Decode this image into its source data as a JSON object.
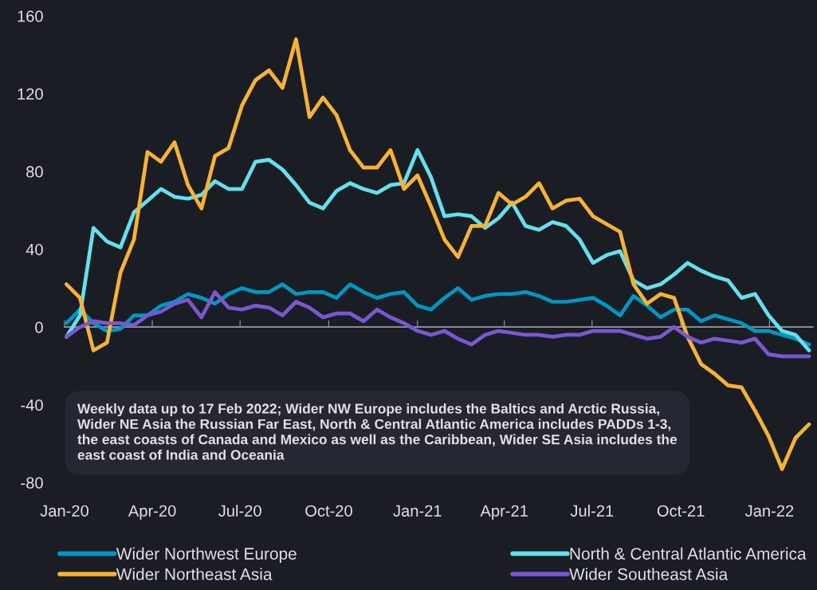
{
  "chart_data": {
    "type": "line",
    "x": [
      "2020-01-03",
      "2020-01-17",
      "2020-01-31",
      "2020-02-14",
      "2020-02-28",
      "2020-03-13",
      "2020-03-27",
      "2020-04-10",
      "2020-04-24",
      "2020-05-08",
      "2020-05-22",
      "2020-06-05",
      "2020-06-19",
      "2020-07-03",
      "2020-07-17",
      "2020-07-31",
      "2020-08-14",
      "2020-08-28",
      "2020-09-11",
      "2020-09-25",
      "2020-10-09",
      "2020-10-23",
      "2020-11-06",
      "2020-11-20",
      "2020-12-04",
      "2020-12-18",
      "2021-01-01",
      "2021-01-15",
      "2021-01-29",
      "2021-02-12",
      "2021-02-26",
      "2021-03-12",
      "2021-03-26",
      "2021-04-09",
      "2021-04-23",
      "2021-05-07",
      "2021-05-21",
      "2021-06-04",
      "2021-06-18",
      "2021-07-02",
      "2021-07-16",
      "2021-07-30",
      "2021-08-13",
      "2021-08-27",
      "2021-09-10",
      "2021-09-24",
      "2021-10-08",
      "2021-10-22",
      "2021-11-05",
      "2021-11-19",
      "2021-12-03",
      "2021-12-17",
      "2021-12-31",
      "2022-01-14",
      "2022-01-28",
      "2022-02-11"
    ],
    "series": [
      {
        "name": "Wider Northwest Europe",
        "color": "#0097c1",
        "values": [
          2,
          9,
          2,
          -2,
          -1,
          6,
          6,
          11,
          13,
          17,
          15,
          12,
          17,
          20,
          18,
          18,
          22,
          17,
          18,
          18,
          15,
          22,
          18,
          15,
          17,
          18,
          11,
          9,
          15,
          20,
          14,
          16,
          17,
          17,
          18,
          16,
          13,
          13,
          14,
          15,
          11,
          6,
          16,
          11,
          5,
          9,
          9,
          3,
          6,
          4,
          2,
          -2,
          -2,
          -4,
          -6,
          -9
        ]
      },
      {
        "name": "North & Central Atlantic America",
        "color": "#65e0ec",
        "values": [
          -5,
          6,
          51,
          44,
          41,
          59,
          65,
          71,
          67,
          66,
          68,
          75,
          71,
          71,
          85,
          86,
          81,
          73,
          64,
          61,
          70,
          74,
          71,
          69,
          73,
          74,
          91,
          77,
          57,
          58,
          57,
          51,
          56,
          64,
          52,
          50,
          54,
          52,
          45,
          33,
          37,
          39,
          24,
          20,
          22,
          27,
          33,
          29,
          26,
          24,
          15,
          17,
          6,
          -2,
          -4,
          -12
        ]
      },
      {
        "name": "Wider Northeast Asia",
        "color": "#f5b335",
        "values": [
          22,
          15,
          -12,
          -8,
          28,
          45,
          90,
          85,
          95,
          73,
          61,
          88,
          92,
          114,
          127,
          132,
          123,
          148,
          108,
          118,
          109,
          91,
          82,
          82,
          91,
          71,
          78,
          62,
          45,
          36,
          52,
          52,
          69,
          63,
          67,
          74,
          61,
          65,
          66,
          57,
          53,
          49,
          22,
          12,
          17,
          15,
          -5,
          -19,
          -24,
          -30,
          -31,
          -43,
          -56,
          -73,
          -57,
          -50
        ]
      },
      {
        "name": "Wider Southeast Asia",
        "color": "#7b57d1",
        "values": [
          -5,
          0,
          3,
          2,
          2,
          1,
          6,
          8,
          12,
          14,
          5,
          18,
          10,
          9,
          11,
          10,
          6,
          13,
          10,
          5,
          7,
          7,
          3,
          9,
          5,
          2,
          -2,
          -4,
          -2,
          -6,
          -9,
          -4,
          -2,
          -3,
          -4,
          -4,
          -5,
          -4,
          -4,
          -2,
          -2,
          -2,
          -4,
          -6,
          -5,
          0,
          -5,
          -8,
          -6,
          -7,
          -8,
          -6,
          -14,
          -15,
          -15,
          -15
        ]
      }
    ],
    "xlim": [
      "2020-01-01",
      "2022-02-15"
    ],
    "xticks": [
      {
        "value": "2020-01-01",
        "label": "Jan-20"
      },
      {
        "value": "2020-04-01",
        "label": "Apr-20"
      },
      {
        "value": "2020-07-01",
        "label": "Jul-20"
      },
      {
        "value": "2020-10-01",
        "label": "Oct-20"
      },
      {
        "value": "2021-01-01",
        "label": "Jan-21"
      },
      {
        "value": "2021-04-01",
        "label": "Apr-21"
      },
      {
        "value": "2021-07-01",
        "label": "Jul-21"
      },
      {
        "value": "2021-10-01",
        "label": "Oct-21"
      },
      {
        "value": "2022-01-01",
        "label": "Jan-22"
      }
    ],
    "ylim": [
      -80,
      160
    ],
    "yticks": [
      -80,
      -40,
      0,
      40,
      80,
      120,
      160
    ],
    "annotations": [
      "Weekly data up to 17 Feb 2022; Wider NW Europe includes the Baltics and Arctic Russia, Wider NE Asia the Russian Far East, North & Central Atlantic America includes PADDs 1-3, the east coasts of Canada and Mexico as well as the Caribbean, Wider SE Asia includes the east coast of India and Oceania"
    ],
    "legend": "bottom"
  }
}
